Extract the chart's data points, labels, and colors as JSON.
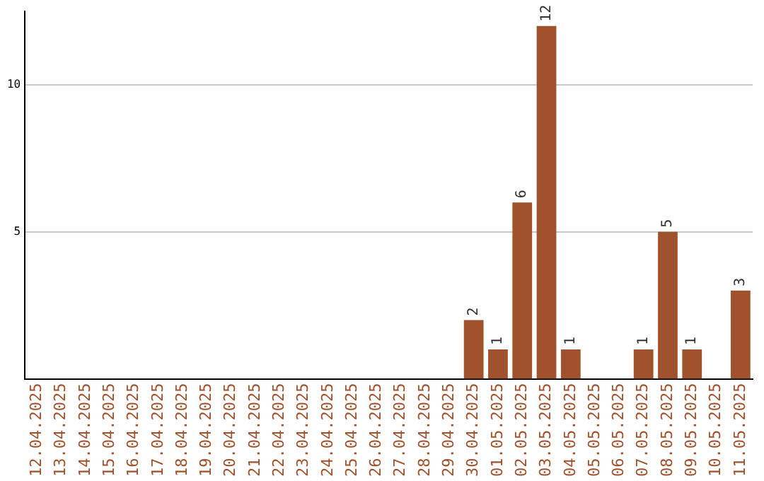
{
  "chart_data": {
    "type": "bar",
    "categories": [
      "12.04.2025",
      "13.04.2025",
      "14.04.2025",
      "15.04.2025",
      "16.04.2025",
      "17.04.2025",
      "18.04.2025",
      "19.04.2025",
      "20.04.2025",
      "21.04.2025",
      "22.04.2025",
      "23.04.2025",
      "24.04.2025",
      "25.04.2025",
      "26.04.2025",
      "27.04.2025",
      "28.04.2025",
      "29.04.2025",
      "30.04.2025",
      "01.05.2025",
      "02.05.2025",
      "03.05.2025",
      "04.05.2025",
      "05.05.2025",
      "06.05.2025",
      "07.05.2025",
      "08.05.2025",
      "09.05.2025",
      "10.05.2025",
      "11.05.2025"
    ],
    "values": [
      0,
      0,
      0,
      0,
      0,
      0,
      0,
      0,
      0,
      0,
      0,
      0,
      0,
      0,
      0,
      0,
      0,
      0,
      2,
      1,
      6,
      12,
      1,
      0,
      0,
      1,
      5,
      1,
      0,
      3
    ],
    "value_labels": [
      null,
      null,
      null,
      null,
      null,
      null,
      null,
      null,
      null,
      null,
      null,
      null,
      null,
      null,
      null,
      null,
      null,
      null,
      "2",
      "1",
      "6",
      "12",
      "1",
      null,
      null,
      "1",
      "5",
      "1",
      null,
      "3"
    ],
    "color": "#a0522d",
    "ylim": [
      0,
      12.5
    ],
    "yticks": [
      5,
      10
    ],
    "grid": "y",
    "legend": false
  }
}
